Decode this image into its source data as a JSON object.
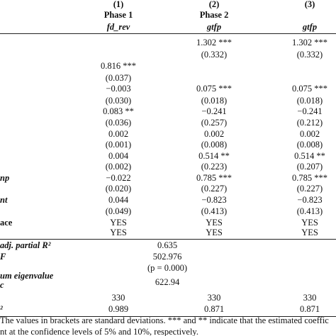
{
  "table": {
    "columns": [
      {
        "number": "(1)",
        "phase": "Phase 1",
        "variable": "fd_rev"
      },
      {
        "number": "(2)",
        "phase": "Phase 2",
        "variable": "gtfp"
      },
      {
        "number": "(3)",
        "variable": "gtfp"
      }
    ],
    "rows": [
      {
        "cells": [
          null,
          "1.302 ***",
          "1.302 ***"
        ]
      },
      {
        "cells": [
          null,
          "(0.332)",
          "(0.332)"
        ]
      },
      {
        "cells": [
          "0.816 ***",
          null,
          null
        ]
      },
      {
        "cells": [
          "(0.037)",
          null,
          null
        ]
      },
      {
        "cells": [
          "−0.003",
          "0.075 ***",
          "0.075 ***"
        ]
      },
      {
        "cells": [
          "(0.030)",
          "(0.018)",
          "(0.018)"
        ]
      },
      {
        "cells": [
          "0.083 **",
          "−0.241",
          "−0.241"
        ]
      },
      {
        "cells": [
          "(0.036)",
          "(0.257)",
          "(0.212)"
        ]
      },
      {
        "cells": [
          "0.002",
          "0.002",
          "0.002"
        ]
      },
      {
        "cells": [
          "(0.001)",
          "(0.008)",
          "(0.008)"
        ]
      },
      {
        "cells": [
          "0.004",
          "0.514 **",
          "0.514 **"
        ]
      },
      {
        "cells": [
          "(0.002)",
          "(0.223)",
          "(0.207)"
        ]
      },
      {
        "label": "np",
        "cells": [
          "−0.022",
          "0.785 ***",
          "0.785 ***"
        ]
      },
      {
        "cells": [
          "(0.020)",
          "(0.227)",
          "(0.227)"
        ]
      },
      {
        "label": "nt",
        "cells": [
          "0.044",
          "−0.823",
          "−0.823"
        ]
      },
      {
        "cells": [
          "(0.049)",
          "(0.413)",
          "(0.413)"
        ]
      },
      {
        "label": "ace",
        "cells": [
          "YES",
          "YES",
          "YES"
        ]
      },
      {
        "cells": [
          "YES",
          "YES",
          "YES"
        ]
      }
    ],
    "stats": [
      {
        "label": "adj. partial R²",
        "value": "0.635"
      },
      {
        "label": "F",
        "value": "502.976"
      },
      {
        "value": "(p = 0.000)"
      },
      {
        "label": "um eigenvalue"
      },
      {
        "label": "c",
        "value": "622.94"
      }
    ],
    "bottom_rows": [
      {
        "cells": [
          "330",
          "330",
          "330"
        ]
      },
      {
        "label": "²",
        "cells": [
          "0.989",
          "0.871",
          "0.871"
        ]
      }
    ],
    "notes": [
      "The values in brackets are standard deviations. *** and ** indicate that the estimated coeffic",
      "nt at the confidence levels of 5% and 10%, respectively."
    ]
  }
}
